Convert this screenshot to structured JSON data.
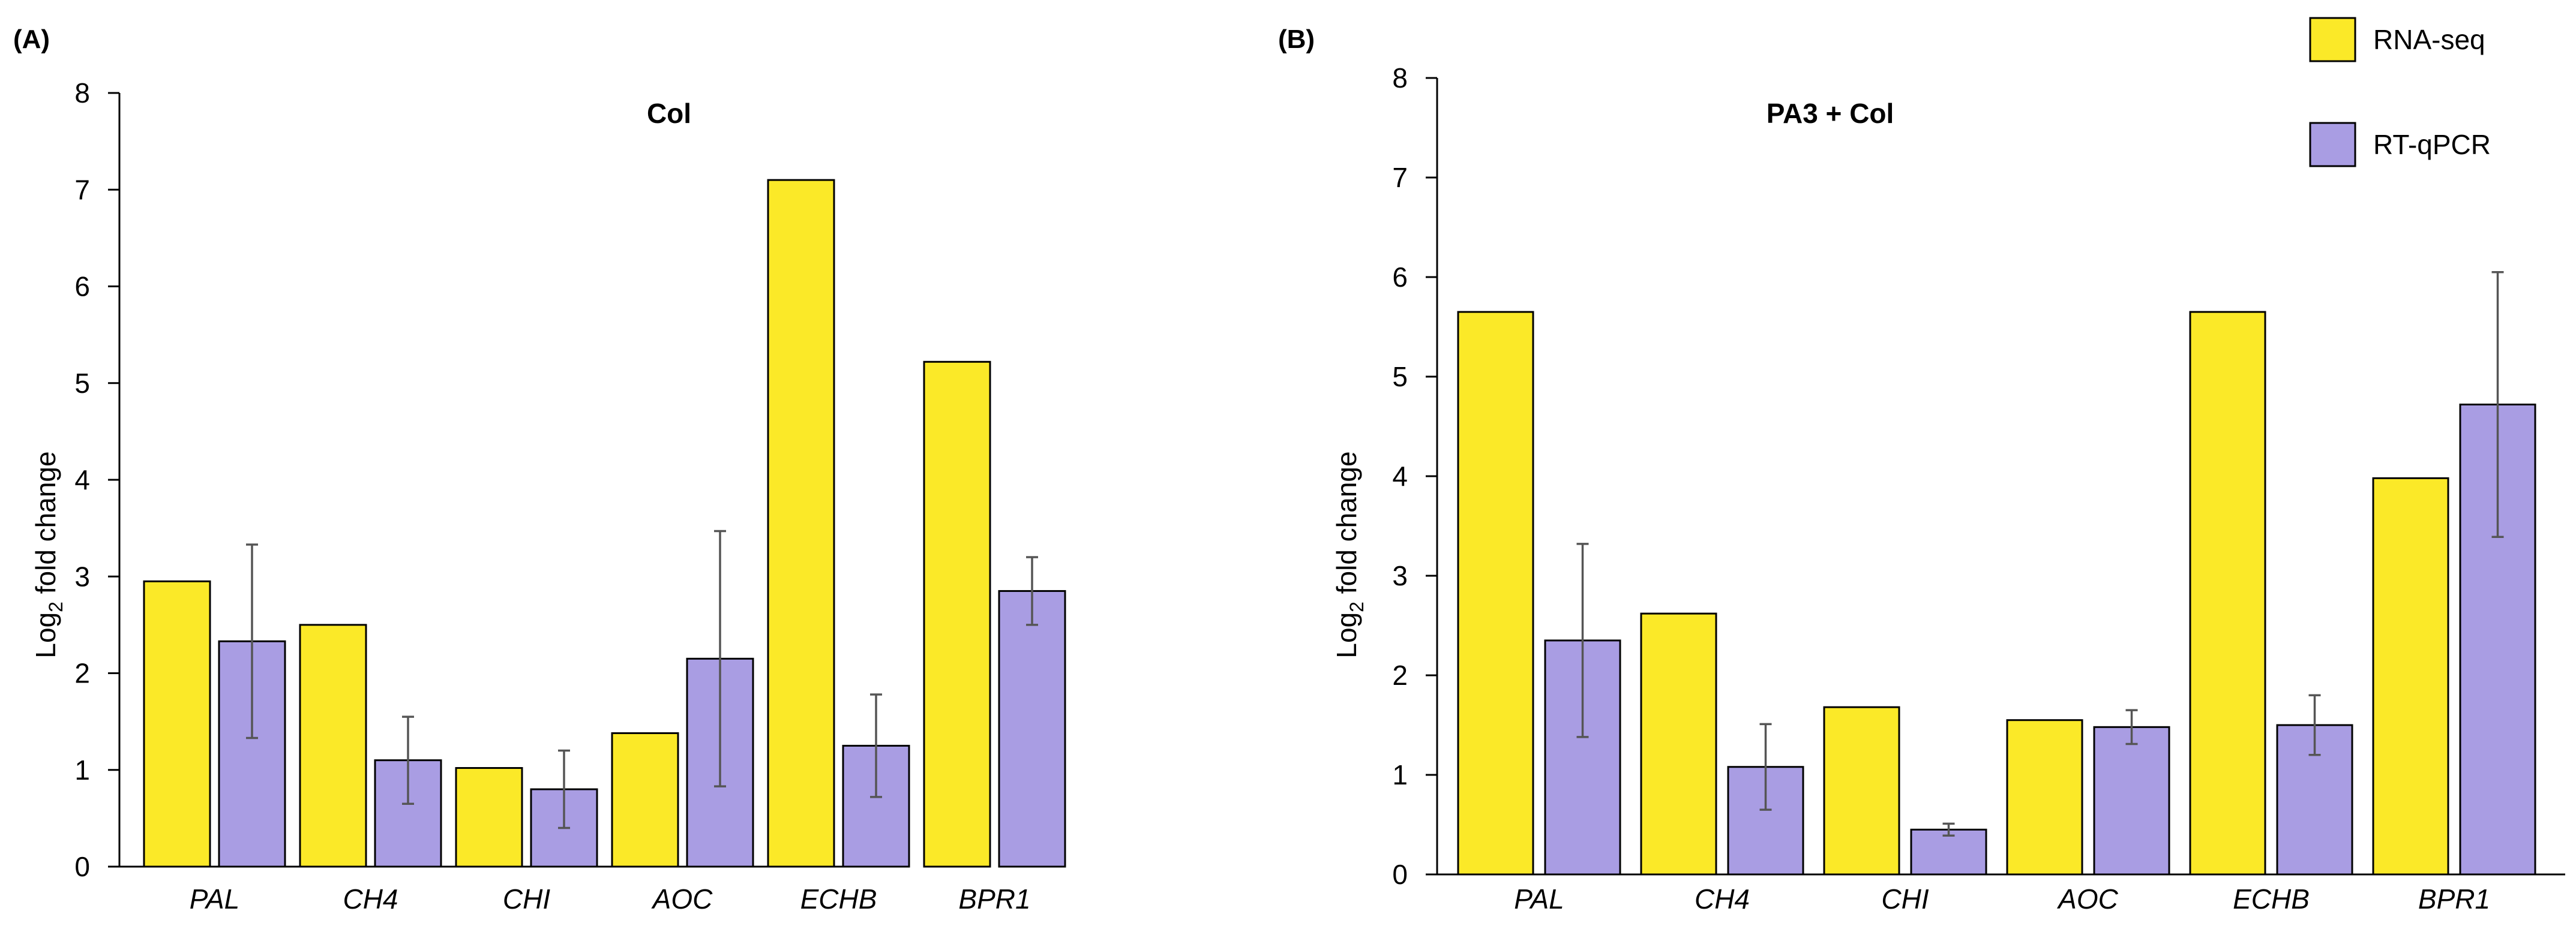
{
  "legend": {
    "items": [
      {
        "label": "RNA-seq",
        "color": "#fbe928"
      },
      {
        "label": "RT-qPCR",
        "color": "#a99de3"
      }
    ]
  },
  "chart_data": [
    {
      "type": "bar",
      "panel_label": "(A)",
      "title": "Col",
      "xlabel": "",
      "ylabel": "Log2 fold change",
      "ylim": [
        0,
        8
      ],
      "yticks": [
        0,
        1,
        2,
        3,
        4,
        5,
        6,
        7,
        8
      ],
      "categories": [
        "PAL",
        "CH4",
        "CHI",
        "AOC",
        "ECHB",
        "BPR1"
      ],
      "series": [
        {
          "name": "RNA-seq",
          "values": [
            2.95,
            2.5,
            1.02,
            1.38,
            7.1,
            5.22
          ]
        },
        {
          "name": "RT-qPCR",
          "values": [
            2.33,
            1.1,
            0.8,
            2.15,
            1.25,
            2.85
          ],
          "error": [
            1.0,
            0.45,
            0.4,
            1.32,
            0.53,
            0.35
          ]
        }
      ]
    },
    {
      "type": "bar",
      "panel_label": "(B)",
      "title": "PA3 + Col",
      "xlabel": "",
      "ylabel": "Log2 fold change",
      "ylim": [
        0,
        8
      ],
      "yticks": [
        0,
        1,
        2,
        3,
        4,
        5,
        6,
        7,
        8
      ],
      "categories": [
        "PAL",
        "CH4",
        "CHI",
        "AOC",
        "ECHB",
        "BPR1"
      ],
      "series": [
        {
          "name": "RNA-seq",
          "values": [
            5.65,
            2.62,
            1.68,
            1.55,
            5.65,
            3.98
          ]
        },
        {
          "name": "RT-qPCR",
          "values": [
            2.35,
            1.08,
            0.45,
            1.48,
            1.5,
            4.72
          ],
          "error": [
            0.97,
            0.43,
            0.06,
            0.17,
            0.3,
            1.33
          ]
        }
      ]
    }
  ]
}
